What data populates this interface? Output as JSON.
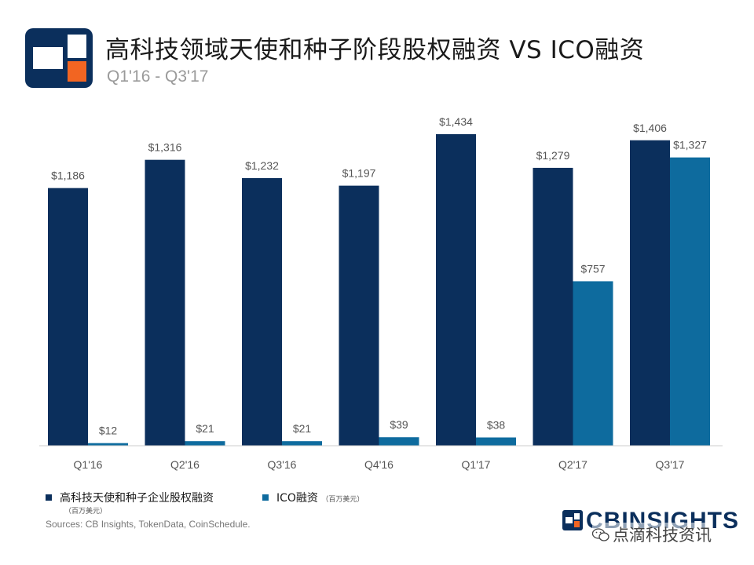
{
  "header": {
    "title": "高科技领域天使和种子阶段股权融资 VS ICO融资",
    "subtitle": "Q1'16 - Q3'17",
    "logo_icon": "cb-insights-logo-icon"
  },
  "colors": {
    "equity": "#0b2f5c",
    "ico": "#0e6b9e",
    "label": "#555555",
    "axis": "#cccccc"
  },
  "chart_data": {
    "type": "bar",
    "title": "高科技领域天使和种子阶段股权融资 VS ICO融资",
    "subtitle": "Q1'16 - Q3'17",
    "categories": [
      "Q1'16",
      "Q2'16",
      "Q3'16",
      "Q4'16",
      "Q1'17",
      "Q2'17",
      "Q3'17"
    ],
    "series": [
      {
        "name": "高科技天使和种子企业股权融资",
        "values": [
          1186,
          1316,
          1232,
          1197,
          1434,
          1279,
          1406
        ]
      },
      {
        "name": "ICO融资",
        "values": [
          12,
          21,
          21,
          39,
          38,
          757,
          1327
        ]
      }
    ],
    "data_labels": [
      [
        "$1,186",
        "$1,316",
        "$1,232",
        "$1,197",
        "$1,434",
        "$1,279",
        "$1,406"
      ],
      [
        "$12",
        "$21",
        "$21",
        "$39",
        "$38",
        "$757",
        "$1,327"
      ]
    ],
    "ylim": [
      0,
      1434
    ],
    "grid": false,
    "legend_position": "bottom-left"
  },
  "legend": {
    "items": [
      {
        "label": "高科技天使和种子企业股权融资",
        "unit": "（百万美元）"
      },
      {
        "label": "ICO融资",
        "unit": "（百万美元）"
      }
    ]
  },
  "footer": {
    "sources": "Sources: CB Insights, TokenData, CoinSchedule.",
    "brand": "CBINSIGHTS",
    "brand_icon": "cb-brand-icon",
    "watermark": "点滴科技资讯",
    "watermark_icon": "wechat-icon"
  }
}
